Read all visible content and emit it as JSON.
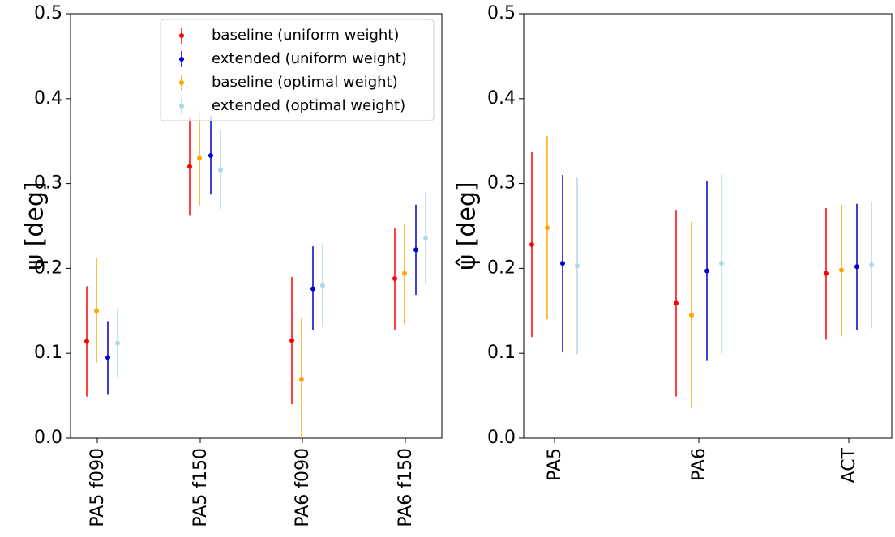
{
  "chart_data": [
    {
      "type": "scatter",
      "subtype": "errorbar",
      "title": "",
      "xlabel": "",
      "ylabel": "ψ [deg]",
      "ylim": [
        0,
        0.5
      ],
      "yticks": [
        "0.0",
        "0.1",
        "0.2",
        "0.3",
        "0.4",
        "0.5"
      ],
      "categories": [
        "PA5 f090",
        "PA5 f150",
        "PA6 f090",
        "PA6 f150"
      ],
      "legend": "top-right",
      "series": [
        {
          "name": "baseline (uniform weight)",
          "color": "#ff0000",
          "values": [
            0.114,
            0.32,
            0.115,
            0.188
          ],
          "lower": [
            0.049,
            0.262,
            0.04,
            0.128
          ],
          "upper": [
            0.179,
            0.378,
            0.19,
            0.248
          ]
        },
        {
          "name": "extended (uniform weight)",
          "color": "#0000cc",
          "values": [
            0.095,
            0.333,
            0.176,
            0.222
          ],
          "lower": [
            0.051,
            0.287,
            0.127,
            0.169
          ],
          "upper": [
            0.138,
            0.38,
            0.226,
            0.275
          ]
        },
        {
          "name": "baseline (optimal weight)",
          "color": "#ffa500",
          "values": [
            0.15,
            0.33,
            0.069,
            0.194
          ],
          "lower": [
            0.089,
            0.274,
            0.0,
            0.134
          ],
          "upper": [
            0.212,
            0.386,
            0.142,
            0.253
          ]
        },
        {
          "name": "extended (optimal weight)",
          "color": "#add8e6",
          "values": [
            0.112,
            0.316,
            0.18,
            0.236
          ],
          "lower": [
            0.071,
            0.27,
            0.131,
            0.182
          ],
          "upper": [
            0.153,
            0.362,
            0.229,
            0.29
          ]
        }
      ]
    },
    {
      "type": "scatter",
      "subtype": "errorbar",
      "title": "",
      "xlabel": "",
      "ylabel": "ψ̂ [deg]",
      "ylim": [
        0,
        0.5
      ],
      "yticks": [
        "0.0",
        "0.1",
        "0.2",
        "0.3",
        "0.4",
        "0.5"
      ],
      "categories": [
        "PA5",
        "PA6",
        "ACT"
      ],
      "series": [
        {
          "name": "baseline (uniform weight)",
          "color": "#ff0000",
          "values": [
            0.228,
            0.159,
            0.194
          ],
          "lower": [
            0.119,
            0.049,
            0.116
          ],
          "upper": [
            0.337,
            0.269,
            0.271
          ]
        },
        {
          "name": "baseline (optimal weight)",
          "color": "#ffa500",
          "values": [
            0.248,
            0.145,
            0.198
          ],
          "lower": [
            0.14,
            0.035,
            0.12
          ],
          "upper": [
            0.356,
            0.255,
            0.275
          ]
        },
        {
          "name": "extended (uniform weight)",
          "color": "#0000cc",
          "values": [
            0.206,
            0.197,
            0.202
          ],
          "lower": [
            0.101,
            0.091,
            0.127
          ],
          "upper": [
            0.31,
            0.303,
            0.276
          ]
        },
        {
          "name": "extended (optimal weight)",
          "color": "#add8e6",
          "values": [
            0.203,
            0.206,
            0.204
          ],
          "lower": [
            0.099,
            0.1,
            0.129
          ],
          "upper": [
            0.307,
            0.311,
            0.278
          ]
        }
      ]
    }
  ]
}
